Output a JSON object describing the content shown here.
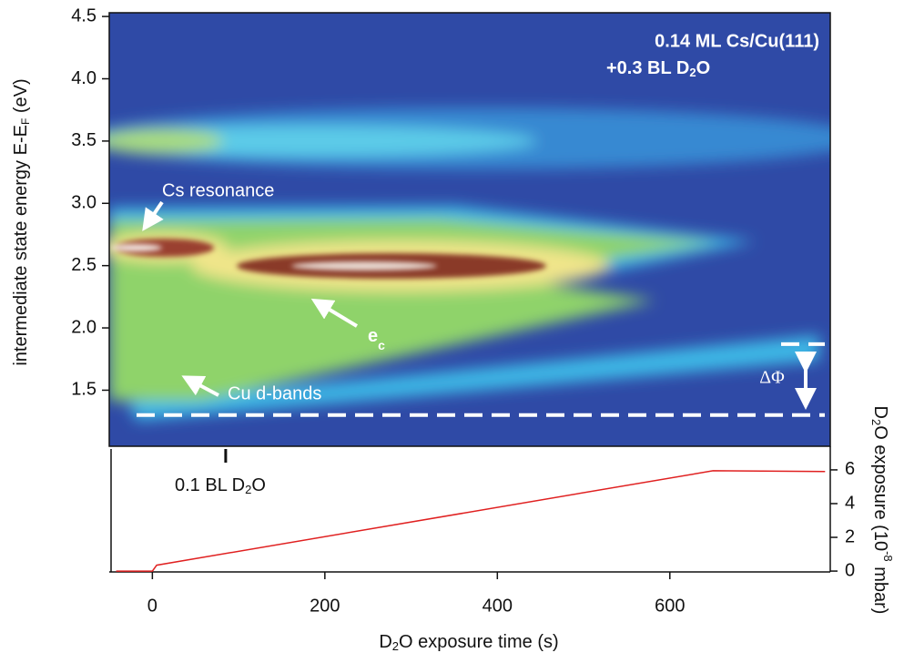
{
  "chart_data": [
    {
      "type": "heatmap",
      "ylabel": [
        "intermediate state energy E-E",
        "F",
        " (eV)"
      ],
      "xlim": [
        -50,
        786
      ],
      "ylim": [
        1.05,
        4.53
      ],
      "yticks": [
        1.5,
        {
          "value": 2,
          "label": "2.0"
        },
        2.5,
        {
          "value": 3,
          "label": "3.0"
        },
        3.5,
        {
          "value": 4,
          "label": "4.0"
        },
        4.5
      ],
      "annotations": {
        "sample": "0.14 ML Cs/Cu(111)",
        "coverage": [
          "+0.3 BL D",
          "2",
          "O"
        ],
        "cs": "Cs resonance",
        "ec": [
          "e",
          "c"
        ],
        "cu": "Cu d-bands",
        "dphi": "ΔΦ"
      },
      "levels": [
        1.3,
        1.87
      ]
    },
    {
      "type": "line",
      "xlabel": [
        "D",
        "2",
        "O exposure time (s)"
      ],
      "ylabel": [
        "D",
        "2",
        "O exposure (10",
        "-8",
        " mbar)"
      ],
      "xlim": [
        -50,
        786
      ],
      "xticks": [
        0,
        200,
        400,
        600
      ],
      "ylim": [
        -0.05,
        7.4
      ],
      "yticks": [
        0,
        2,
        4,
        6
      ],
      "color": "#e02020",
      "x": [
        -42,
        0,
        5,
        650,
        780
      ],
      "values": [
        0,
        0,
        0.35,
        5.95,
        5.9
      ],
      "marker": {
        "x": 85,
        "label": [
          "0.1 BL D",
          "2",
          "O"
        ]
      }
    }
  ]
}
